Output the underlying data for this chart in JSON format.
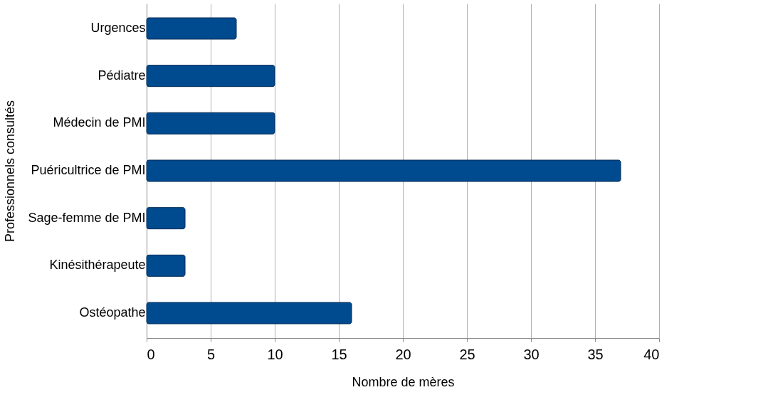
{
  "chart_data": {
    "type": "bar",
    "orientation": "horizontal",
    "xlabel": "Nombre de mères",
    "ylabel": "Professionnels consultés",
    "categories": [
      "Urgences",
      "Pédiatre",
      "Médecin de PMI",
      "Puéricultrice de PMI",
      "Sage-femme de PMI",
      "Kinésithérapeute",
      "Ostéopathe"
    ],
    "values": [
      7,
      10,
      10,
      37,
      3,
      3,
      16
    ],
    "color": "#004a8f",
    "xlim": [
      0,
      40
    ],
    "xticks": [
      0,
      5,
      10,
      15,
      20,
      25,
      30,
      35,
      40
    ],
    "grid": "x"
  }
}
